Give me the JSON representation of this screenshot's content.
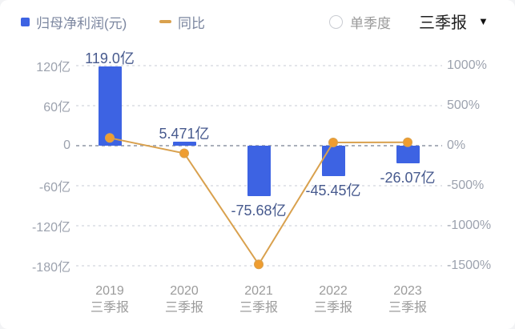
{
  "legend": {
    "bar_label": "归母净利润(元)",
    "line_label": "同比"
  },
  "controls": {
    "radio_label": "单季度",
    "dropdown_value": "三季报",
    "dropdown_caret": "▼"
  },
  "colors": {
    "bar": "#3D63E3",
    "line": "#D9A14E",
    "dot": "#EF9D30",
    "data_label": "#475A8E",
    "axis_label": "#9CA2AE",
    "x_label": "#9B9B9B",
    "grid": "#E3E5EA",
    "zero_line": "#A9AFBA",
    "legend_text": "#7C87A0",
    "control_muted": "#999999",
    "control_active": "#1F1F1F",
    "background": "#FFFFFF"
  },
  "chart_data": {
    "type": "bar",
    "categories": [
      "2019 三季报",
      "2020 三季报",
      "2021 三季报",
      "2022 三季报",
      "2023 三季报"
    ],
    "x_tick_lines": [
      [
        "2019",
        "三季报"
      ],
      [
        "2020",
        "三季报"
      ],
      [
        "2021",
        "三季报"
      ],
      [
        "2022",
        "三季报"
      ],
      [
        "2023",
        "三季报"
      ]
    ],
    "series": [
      {
        "name": "归母净利润(元)",
        "type": "bar",
        "unit": "亿",
        "values": [
          119.0,
          5.471,
          -75.68,
          -45.45,
          -26.07
        ],
        "data_labels": [
          "119.0亿",
          "5.471亿",
          "-75.68亿",
          "-45.45亿",
          "-26.07亿"
        ]
      },
      {
        "name": "同比",
        "type": "line",
        "unit": "%",
        "values_estimated": [
          97,
          -95,
          -1483,
          40,
          43
        ],
        "note": "line values estimated from pixel positions; no data labels shown"
      }
    ],
    "left_axis": {
      "title": "归母净利润",
      "unit": "亿",
      "ticks": [
        "120亿",
        "60亿",
        "0",
        "-60亿",
        "-120亿",
        "-180亿"
      ],
      "values": [
        120,
        60,
        0,
        -60,
        -120,
        -180
      ],
      "range": [
        -180,
        120
      ]
    },
    "right_axis": {
      "title": "同比",
      "unit": "%",
      "ticks": [
        "1000%",
        "500%",
        "0%",
        "-500%",
        "-1000%",
        "-1500%"
      ],
      "values": [
        1000,
        500,
        0,
        -500,
        -1000,
        -1500
      ],
      "range": [
        -1500,
        1000
      ]
    },
    "grid": true,
    "legend_position": "top-left"
  }
}
